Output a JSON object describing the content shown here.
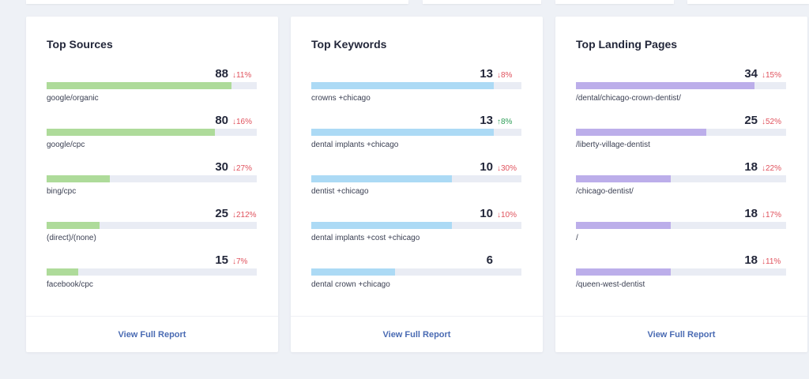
{
  "colors": {
    "sources_bar": "#aedb9a",
    "keywords_bar": "#acdaf5",
    "pages_bar": "#bcaeea",
    "down": "#e0525d",
    "up": "#2f9e58",
    "link": "#4a6bb3"
  },
  "cards": [
    {
      "title": "Top Sources",
      "link": "View Full Report",
      "rows": [
        {
          "value": "88",
          "change": "↓11%",
          "dir": "down",
          "label": "google/organic",
          "fill": 0.88
        },
        {
          "value": "80",
          "change": "↓16%",
          "dir": "down",
          "label": "google/cpc",
          "fill": 0.8
        },
        {
          "value": "30",
          "change": "↓27%",
          "dir": "down",
          "label": "bing/cpc",
          "fill": 0.3
        },
        {
          "value": "25",
          "change": "↓212%",
          "dir": "down",
          "label": "(direct)/(none)",
          "fill": 0.25
        },
        {
          "value": "15",
          "change": "↓7%",
          "dir": "down",
          "label": "facebook/cpc",
          "fill": 0.15
        }
      ]
    },
    {
      "title": "Top Keywords",
      "link": "View Full Report",
      "rows": [
        {
          "value": "13",
          "change": "↓8%",
          "dir": "down",
          "label": "crowns +chicago",
          "fill": 0.87
        },
        {
          "value": "13",
          "change": "↑8%",
          "dir": "up",
          "label": "dental implants +chicago",
          "fill": 0.87
        },
        {
          "value": "10",
          "change": "↓30%",
          "dir": "down",
          "label": "dentist +chicago",
          "fill": 0.67
        },
        {
          "value": "10",
          "change": "↓10%",
          "dir": "down",
          "label": "dental implants +cost +chicago",
          "fill": 0.67
        },
        {
          "value": "6",
          "change": "",
          "dir": "none",
          "label": "dental crown +chicago",
          "fill": 0.4
        }
      ]
    },
    {
      "title": "Top Landing Pages",
      "link": "View Full Report",
      "rows": [
        {
          "value": "34",
          "change": "↓15%",
          "dir": "down",
          "label": "/dental/chicago-crown-dentist/",
          "fill": 0.85
        },
        {
          "value": "25",
          "change": "↓52%",
          "dir": "down",
          "label": "/liberty-village-dentist",
          "fill": 0.62
        },
        {
          "value": "18",
          "change": "↓22%",
          "dir": "down",
          "label": "/chicago-dentist/",
          "fill": 0.45
        },
        {
          "value": "18",
          "change": "↓17%",
          "dir": "down",
          "label": "/",
          "fill": 0.45
        },
        {
          "value": "18",
          "change": "↓11%",
          "dir": "down",
          "label": "/queen-west-dentist",
          "fill": 0.45
        }
      ]
    }
  ]
}
